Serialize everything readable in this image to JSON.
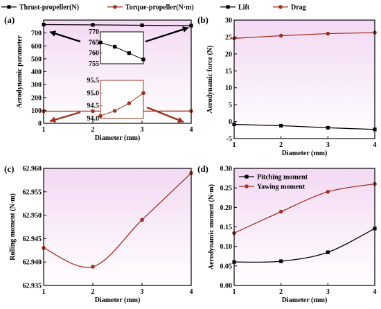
{
  "chart_data": [
    {
      "panel": "(a)",
      "type": "line",
      "ylabel": "Aerodynamic parameter",
      "xlabel": "Diameter (mm)",
      "x": [
        1,
        2,
        3,
        4
      ],
      "xlim": [
        1,
        4
      ],
      "ylim": [
        0,
        800
      ],
      "yticks": [
        0,
        100,
        200,
        300,
        400,
        500,
        600,
        700
      ],
      "xticks": [
        1,
        2,
        3,
        4
      ],
      "legend_position": "top",
      "series": [
        {
          "name": "Thrust-propeller(N)",
          "values": [
            765.0,
            763.0,
            760.0,
            757.0
          ],
          "color": "#000000",
          "marker": "square"
        },
        {
          "name": "Torque-propeller(N·m)",
          "values": [
            94.1,
            94.3,
            94.6,
            95.0
          ],
          "color": "#a0301e",
          "marker": "circle"
        }
      ],
      "insets": [
        {
          "series": "Thrust-propeller(N)",
          "ylim": [
            755,
            770
          ],
          "yticks": [
            755,
            760,
            765,
            770
          ]
        },
        {
          "series": "Torque-propeller(N·m)",
          "ylim": [
            94.0,
            95.5
          ],
          "yticks": [
            "94.0",
            "94.5",
            "95.0",
            "95.5"
          ]
        }
      ]
    },
    {
      "panel": "(b)",
      "type": "line",
      "ylabel": "Aerodynamic force (N)",
      "xlabel": "Diameter (mm)",
      "x": [
        1,
        2,
        3,
        4
      ],
      "xlim": [
        1,
        4
      ],
      "ylim": [
        -5,
        30
      ],
      "yticks": [
        -5,
        0,
        5,
        10,
        15,
        20,
        25,
        30
      ],
      "xticks": [
        1,
        2,
        3,
        4
      ],
      "legend_position": "top",
      "series": [
        {
          "name": "Lift",
          "values": [
            -0.8,
            -1.2,
            -1.8,
            -2.3
          ],
          "color": "#000000",
          "marker": "square"
        },
        {
          "name": "Drag",
          "values": [
            24.6,
            25.4,
            26.0,
            26.3
          ],
          "color": "#a0301e",
          "marker": "circle"
        }
      ]
    },
    {
      "panel": "(c)",
      "type": "line",
      "ylabel": "Rolling moment (N·m)",
      "xlabel": "Diameter (mm)",
      "x": [
        1,
        2,
        3,
        4
      ],
      "xlim": [
        1,
        4
      ],
      "ylim": [
        62.935,
        62.96
      ],
      "yticks": [
        "62.935",
        "62.940",
        "62.945",
        "62.950",
        "62.955",
        "62.960"
      ],
      "xticks": [
        1,
        2,
        3,
        4
      ],
      "series": [
        {
          "name": "",
          "values": [
            62.943,
            62.939,
            62.949,
            62.959
          ],
          "color": "#a0301e",
          "marker": "circle"
        }
      ]
    },
    {
      "panel": "(d)",
      "type": "line",
      "ylabel": "Aerodynamic moment (N·m)",
      "xlabel": "Diameter (mm)",
      "x": [
        1,
        2,
        3,
        4
      ],
      "xlim": [
        1,
        4
      ],
      "ylim": [
        0,
        0.3
      ],
      "yticks": [
        "0.00",
        "0.05",
        "0.10",
        "0.15",
        "0.20",
        "0.25",
        "0.30"
      ],
      "xticks": [
        1,
        2,
        3,
        4
      ],
      "legend_position": "top-left",
      "series": [
        {
          "name": "Pitching moment",
          "values": [
            0.06,
            0.062,
            0.085,
            0.146
          ],
          "color": "#000000",
          "marker": "square"
        },
        {
          "name": "Yawing moment",
          "values": [
            0.134,
            0.189,
            0.24,
            0.26
          ],
          "color": "#a0301e",
          "marker": "circle"
        }
      ]
    }
  ]
}
